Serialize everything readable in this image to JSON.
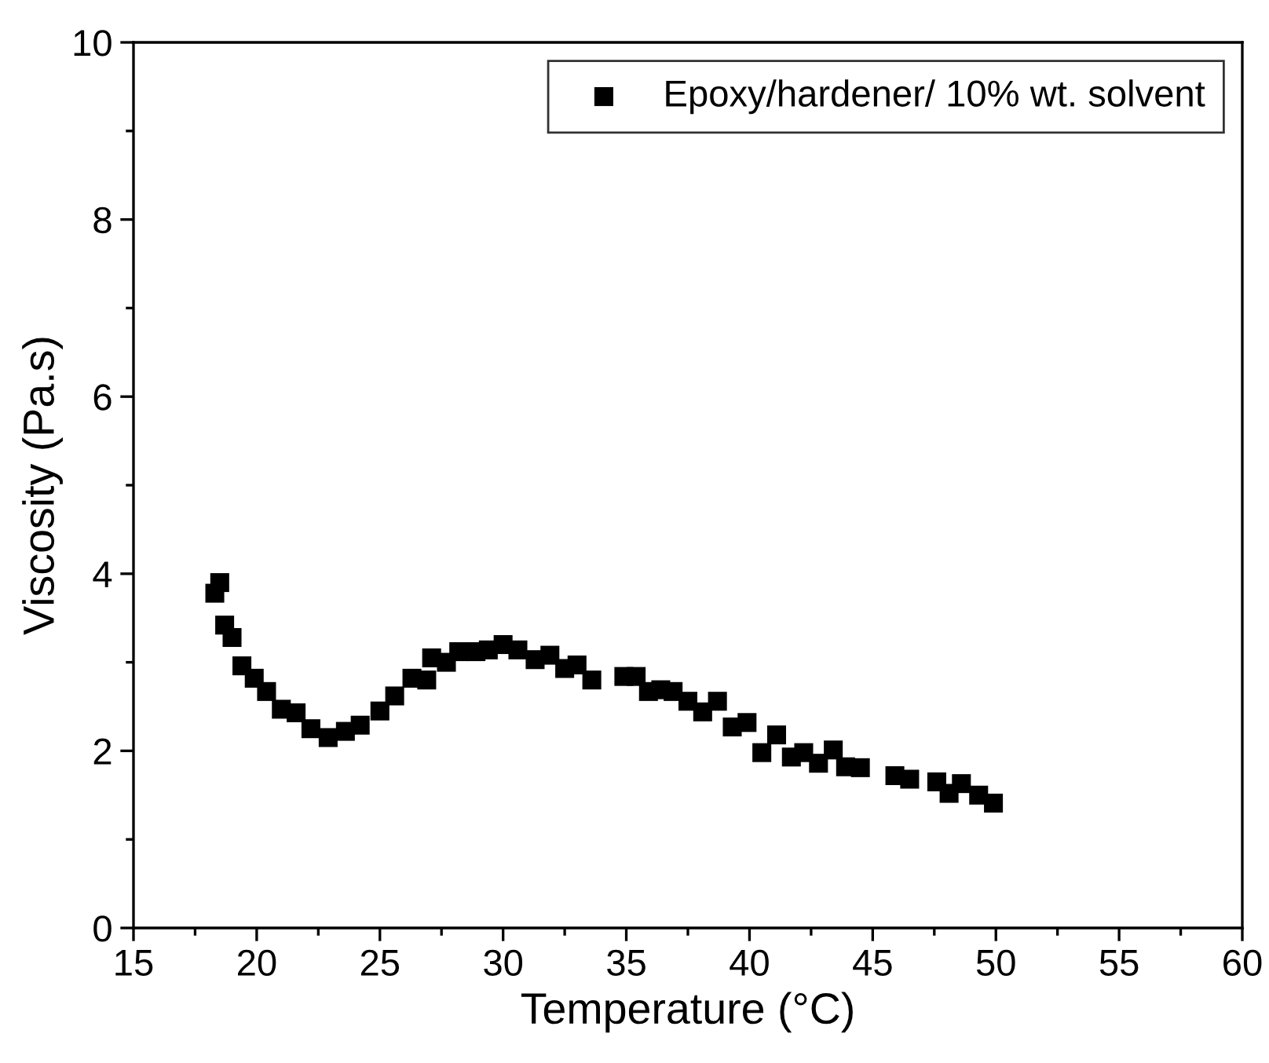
{
  "chart_data": {
    "type": "scatter",
    "xlabel": "Temperature (°C)",
    "ylabel": "Viscosity (Pa.s)",
    "xlim": [
      15,
      60
    ],
    "xticks": [
      15,
      20,
      25,
      30,
      35,
      40,
      45,
      50,
      55,
      60
    ],
    "ylim": [
      0,
      10
    ],
    "yticks": [
      0,
      2,
      4,
      6,
      8,
      10
    ],
    "marker": "square",
    "legend": "top right",
    "grid": false,
    "series": [
      {
        "name": "Epoxy/hardener/ 10% wt. solvent",
        "color": "#000000",
        "x": [
          18.3,
          18.5,
          18.7,
          19.0,
          19.4,
          19.9,
          20.4,
          21.0,
          21.6,
          22.2,
          22.9,
          23.6,
          24.2,
          25.0,
          25.6,
          26.3,
          26.9,
          27.1,
          27.7,
          28.2,
          28.9,
          29.4,
          30.0,
          30.6,
          31.3,
          31.9,
          32.5,
          33.0,
          33.6,
          34.9,
          35.4,
          35.9,
          36.4,
          36.9,
          37.5,
          38.1,
          38.7,
          39.3,
          39.9,
          40.5,
          41.1,
          41.7,
          42.2,
          42.8,
          43.4,
          43.9,
          44.5,
          45.9,
          46.5,
          47.6,
          48.1,
          48.6,
          49.3,
          49.9
        ],
        "values": [
          3.78,
          3.9,
          3.42,
          3.28,
          2.96,
          2.82,
          2.67,
          2.47,
          2.43,
          2.25,
          2.15,
          2.22,
          2.29,
          2.45,
          2.62,
          2.82,
          2.8,
          3.05,
          3.0,
          3.12,
          3.12,
          3.14,
          3.2,
          3.14,
          3.03,
          3.08,
          2.93,
          2.97,
          2.8,
          2.84,
          2.84,
          2.67,
          2.69,
          2.67,
          2.56,
          2.44,
          2.56,
          2.27,
          2.32,
          1.98,
          2.18,
          1.93,
          1.98,
          1.86,
          2.01,
          1.82,
          1.81,
          1.72,
          1.68,
          1.65,
          1.52,
          1.63,
          1.5,
          1.41
        ]
      }
    ]
  }
}
